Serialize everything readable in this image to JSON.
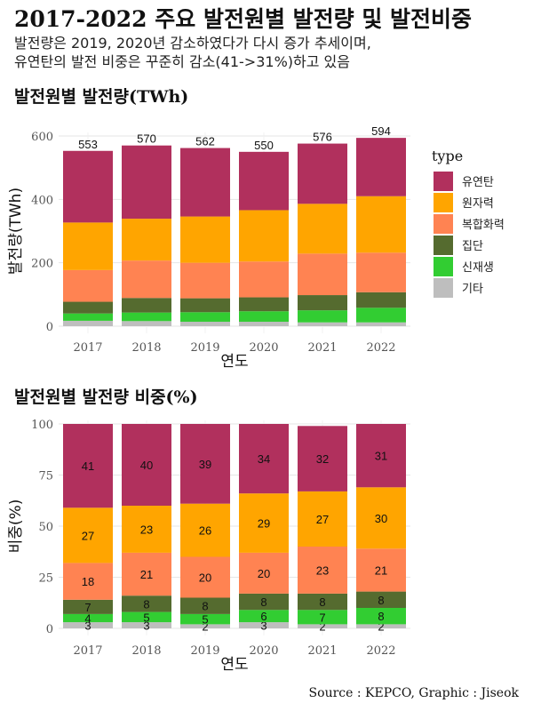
{
  "title": "2017-2022 주요 발전원별 발전량 및 발전비중",
  "subtitle": {
    "line1": "발전량은 2019, 2020년 감소하였다가 다시 증가 추세이며,",
    "line2": "유연탄의 발전 비중은 꾸준히 감소(41->31%)하고 있음"
  },
  "source": "Source : KEPCO, Graphic : Jiseok",
  "colors": {
    "유연탄": "#b1305d",
    "원자력": "#ffa500",
    "복합화력": "#ff8352",
    "집단": "#556b2f",
    "신재생": "#32cd32",
    "기타": "#bebebe"
  },
  "legend": {
    "title": "type",
    "items": [
      "유연탄",
      "원자력",
      "복합화력",
      "집단",
      "신재생",
      "기타"
    ]
  },
  "chart_data": [
    {
      "type": "bar",
      "stacked": true,
      "title": "발전원별 발전량(TWh)",
      "xlabel": "연도",
      "ylabel": "발전량(TWh)",
      "ylim": [
        0,
        600
      ],
      "yticks": [
        0,
        200,
        400,
        600
      ],
      "grid": true,
      "legend_position": "right",
      "categories": [
        "2017",
        "2018",
        "2019",
        "2020",
        "2021",
        "2022"
      ],
      "totals": [
        553,
        570,
        562,
        550,
        576,
        594
      ],
      "series": [
        {
          "name": "기타",
          "values": [
            17,
            16,
            14,
            14,
            12,
            12
          ]
        },
        {
          "name": "신재생",
          "values": [
            23,
            27,
            30,
            33,
            38,
            46
          ]
        },
        {
          "name": "집단",
          "values": [
            37,
            46,
            44,
            44,
            48,
            49
          ]
        },
        {
          "name": "복합화력",
          "values": [
            100,
            118,
            112,
            113,
            131,
            125
          ]
        },
        {
          "name": "원자력",
          "values": [
            150,
            132,
            146,
            162,
            157,
            178
          ]
        },
        {
          "name": "유연탄",
          "values": [
            226,
            231,
            216,
            184,
            190,
            184
          ]
        }
      ]
    },
    {
      "type": "bar",
      "stacked": true,
      "title": "발전원별 발전량 비중(%)",
      "xlabel": "연도",
      "ylabel": "비중(%)",
      "ylim": [
        0,
        100
      ],
      "yticks": [
        0,
        25,
        50,
        75,
        100
      ],
      "grid": true,
      "categories": [
        "2017",
        "2018",
        "2019",
        "2020",
        "2021",
        "2022"
      ],
      "series": [
        {
          "name": "기타",
          "values": [
            3,
            3,
            2,
            3,
            2,
            2
          ]
        },
        {
          "name": "신재생",
          "values": [
            4,
            5,
            5,
            6,
            7,
            8
          ]
        },
        {
          "name": "집단",
          "values": [
            7,
            8,
            8,
            8,
            8,
            8
          ]
        },
        {
          "name": "복합화력",
          "values": [
            18,
            21,
            20,
            20,
            23,
            21
          ]
        },
        {
          "name": "원자력",
          "values": [
            27,
            23,
            26,
            29,
            27,
            30
          ]
        },
        {
          "name": "유연탄",
          "values": [
            41,
            40,
            39,
            34,
            32,
            31
          ]
        }
      ]
    }
  ]
}
